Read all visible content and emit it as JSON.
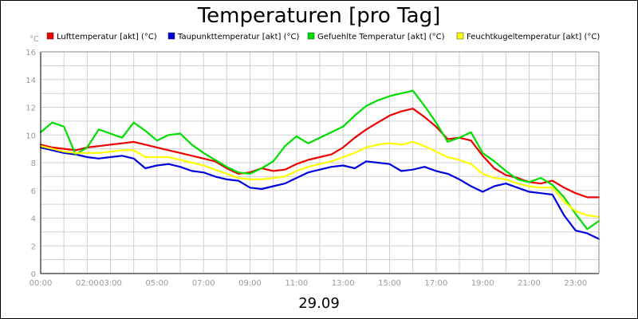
{
  "chart_data": {
    "type": "line",
    "title": "Temperaturen [pro Tag]",
    "ylabel": "°C",
    "xlabel": "29.09",
    "ylim": [
      0,
      16
    ],
    "xlim": [
      0,
      24
    ],
    "grid": true,
    "y_ticks": [
      "0",
      "2",
      "4",
      "6",
      "8",
      "10",
      "12",
      "14",
      "16"
    ],
    "x_tick_labels": [
      "00:00",
      "02:00",
      "03:00",
      "05:00",
      "07:00",
      "09:00",
      "11:00",
      "13:00",
      "15:00",
      "17:00",
      "19:00",
      "21:00",
      "23:00"
    ],
    "x_tick_positions": [
      0,
      2,
      3,
      5,
      7,
      9,
      11,
      13,
      15,
      17,
      19,
      21,
      23
    ],
    "series": [
      {
        "name": "Lufttemperatur [akt] (°C)",
        "color": "#ee0000",
        "x": [
          0,
          0.5,
          1,
          1.5,
          2,
          2.5,
          3,
          3.5,
          4,
          4.5,
          5,
          5.5,
          6,
          6.5,
          7,
          7.5,
          8,
          8.5,
          9,
          9.5,
          10,
          10.5,
          11,
          11.5,
          12,
          12.5,
          13,
          13.5,
          14,
          14.5,
          15,
          15.5,
          16,
          16.5,
          17,
          17.5,
          18,
          18.5,
          19,
          19.5,
          20,
          20.5,
          21,
          21.5,
          22,
          22.5,
          23,
          23.5,
          24
        ],
        "y": [
          9.3,
          9.1,
          9.0,
          8.9,
          9.1,
          9.2,
          9.3,
          9.4,
          9.5,
          9.3,
          9.1,
          8.9,
          8.7,
          8.5,
          8.3,
          8.1,
          7.6,
          7.2,
          7.3,
          7.6,
          7.4,
          7.5,
          7.9,
          8.2,
          8.4,
          8.6,
          9.1,
          9.8,
          10.4,
          10.9,
          11.4,
          11.7,
          11.9,
          11.3,
          10.6,
          9.7,
          9.8,
          9.6,
          8.5,
          7.6,
          7.1,
          6.9,
          6.6,
          6.5,
          6.7,
          6.2,
          5.8,
          5.5,
          5.5
        ]
      },
      {
        "name": "Taupunkttemperatur [akt] (°C)",
        "color": "#0000dd",
        "x": [
          0,
          0.5,
          1,
          1.5,
          2,
          2.5,
          3,
          3.5,
          4,
          4.5,
          5,
          5.5,
          6,
          6.5,
          7,
          7.5,
          8,
          8.5,
          9,
          9.5,
          10,
          10.5,
          11,
          11.5,
          12,
          12.5,
          13,
          13.5,
          14,
          14.5,
          15,
          15.5,
          16,
          16.5,
          17,
          17.5,
          18,
          18.5,
          19,
          19.5,
          20,
          20.5,
          21,
          21.5,
          22,
          22.5,
          23,
          23.5,
          24
        ],
        "y": [
          9.1,
          8.9,
          8.7,
          8.6,
          8.4,
          8.3,
          8.4,
          8.5,
          8.3,
          7.6,
          7.8,
          7.9,
          7.7,
          7.4,
          7.3,
          7.0,
          6.8,
          6.7,
          6.2,
          6.1,
          6.3,
          6.5,
          6.9,
          7.3,
          7.5,
          7.7,
          7.8,
          7.6,
          8.1,
          8.0,
          7.9,
          7.4,
          7.5,
          7.7,
          7.4,
          7.2,
          6.8,
          6.3,
          5.9,
          6.3,
          6.5,
          6.2,
          5.9,
          5.8,
          5.7,
          4.2,
          3.1,
          2.9,
          2.5
        ]
      },
      {
        "name": "Gefuehlte Temperatur [akt] (°C)",
        "color": "#00dd00",
        "x": [
          0,
          0.5,
          1,
          1.5,
          2,
          2.5,
          3,
          3.5,
          4,
          4.5,
          5,
          5.5,
          6,
          6.5,
          7,
          7.5,
          8,
          8.5,
          9,
          9.5,
          10,
          10.5,
          11,
          11.5,
          12,
          12.5,
          13,
          13.5,
          14,
          14.5,
          15,
          15.5,
          16,
          16.5,
          17,
          17.5,
          18,
          18.5,
          19,
          19.5,
          20,
          20.5,
          21,
          21.5,
          22,
          22.5,
          23,
          23.5,
          24
        ],
        "y": [
          10.2,
          10.9,
          10.6,
          8.6,
          9.1,
          10.4,
          10.1,
          9.8,
          10.9,
          10.3,
          9.6,
          10.0,
          10.1,
          9.3,
          8.7,
          8.2,
          7.7,
          7.3,
          7.2,
          7.6,
          8.1,
          9.2,
          9.9,
          9.4,
          9.8,
          10.2,
          10.6,
          11.4,
          12.1,
          12.5,
          12.8,
          13.0,
          13.2,
          12.1,
          10.9,
          9.5,
          9.8,
          10.2,
          8.7,
          8.1,
          7.4,
          6.8,
          6.6,
          6.9,
          6.4,
          5.5,
          4.3,
          3.2,
          3.8
        ]
      },
      {
        "name": "Feuchtkugeltemperatur [akt] (°C)",
        "color": "#ffff00",
        "x": [
          0,
          0.5,
          1,
          1.5,
          2,
          2.5,
          3,
          3.5,
          4,
          4.5,
          5,
          5.5,
          6,
          6.5,
          7,
          7.5,
          8,
          8.5,
          9,
          9.5,
          10,
          10.5,
          11,
          11.5,
          12,
          12.5,
          13,
          13.5,
          14,
          14.5,
          15,
          15.5,
          16,
          16.5,
          17,
          17.5,
          18,
          18.5,
          19,
          19.5,
          20,
          20.5,
          21,
          21.5,
          22,
          22.5,
          23,
          23.5,
          24
        ],
        "y": [
          9.2,
          9.0,
          8.8,
          8.7,
          8.7,
          8.7,
          8.8,
          8.9,
          8.9,
          8.4,
          8.4,
          8.4,
          8.2,
          8.0,
          7.8,
          7.5,
          7.2,
          6.9,
          6.8,
          6.8,
          6.9,
          7.0,
          7.4,
          7.7,
          7.9,
          8.1,
          8.4,
          8.7,
          9.1,
          9.3,
          9.4,
          9.3,
          9.5,
          9.2,
          8.8,
          8.4,
          8.2,
          7.9,
          7.2,
          6.9,
          6.8,
          6.5,
          6.3,
          6.2,
          6.2,
          5.2,
          4.5,
          4.2,
          4.1
        ]
      }
    ]
  }
}
